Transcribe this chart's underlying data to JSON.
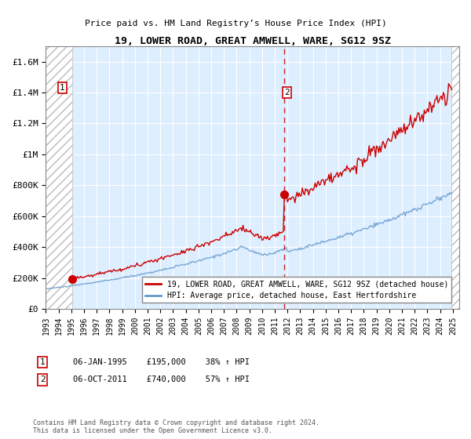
{
  "title": "19, LOWER ROAD, GREAT AMWELL, WARE, SG12 9SZ",
  "subtitle": "Price paid vs. HM Land Registry’s House Price Index (HPI)",
  "ylabel_ticks": [
    "£0",
    "£200K",
    "£400K",
    "£600K",
    "£800K",
    "£1M",
    "£1.2M",
    "£1.4M",
    "£1.6M"
  ],
  "ytick_values": [
    0,
    200000,
    400000,
    600000,
    800000,
    1000000,
    1200000,
    1400000,
    1600000
  ],
  "ylim": [
    0,
    1700000
  ],
  "xlim_start": 1993.0,
  "xlim_end": 2025.5,
  "sale1_date": 1995.04,
  "sale1_price": 195000,
  "sale1_label": "1",
  "sale1_info": "06-JAN-1995    £195,000    38% ↑ HPI",
  "sale2_date": 2011.75,
  "sale2_price": 740000,
  "sale2_label": "2",
  "sale2_info": "06-OCT-2011    £740,000    57% ↑ HPI",
  "line1_label": "19, LOWER ROAD, GREAT AMWELL, WARE, SG12 9SZ (detached house)",
  "line2_label": "HPI: Average price, detached house, East Hertfordshire",
  "line1_color": "#cc0000",
  "line2_color": "#6699cc",
  "bg_color": "#ddeeff",
  "grid_color": "#ffffff",
  "dashed_line_color": "#cc0000",
  "footer": "Contains HM Land Registry data © Crown copyright and database right 2024.\nThis data is licensed under the Open Government Licence v3.0.",
  "xtick_years": [
    1993,
    1994,
    1995,
    1996,
    1997,
    1998,
    1999,
    2000,
    2001,
    2002,
    2003,
    2004,
    2005,
    2006,
    2007,
    2008,
    2009,
    2010,
    2011,
    2012,
    2013,
    2014,
    2015,
    2016,
    2017,
    2018,
    2019,
    2020,
    2021,
    2022,
    2023,
    2024,
    2025
  ]
}
